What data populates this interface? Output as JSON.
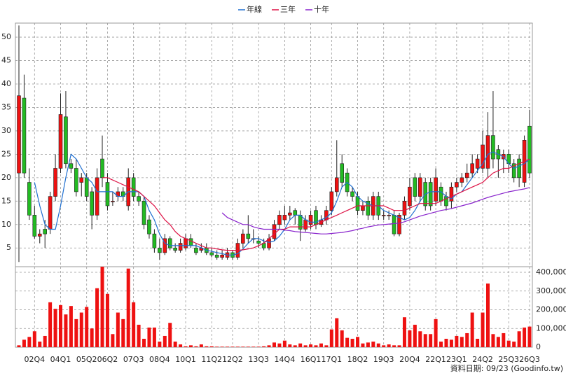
{
  "chart_data": [
    {
      "type": "candlestick",
      "categories": [
        null,
        null,
        null,
        "02Q4",
        null,
        null,
        null,
        null,
        "04Q1",
        null,
        null,
        null,
        null,
        "05Q2",
        null,
        null,
        null,
        "06Q2",
        null,
        null,
        null,
        null,
        "07Q3",
        null,
        null,
        null,
        null,
        "08Q4",
        null,
        null,
        null,
        null,
        "10Q1",
        null,
        null,
        null,
        null,
        "11Q2",
        null,
        null,
        null,
        "12Q2",
        null,
        null,
        null,
        null,
        "13Q3",
        null,
        null,
        null,
        null,
        "14Q4",
        null,
        null,
        null,
        null,
        "16Q1",
        null,
        null,
        null,
        "17Q1",
        null,
        null,
        null,
        null,
        "18Q2",
        null,
        null,
        null,
        null,
        "19Q3",
        null,
        null,
        null,
        null,
        "20Q4",
        null,
        null,
        null,
        null,
        "22Q1",
        null,
        null,
        null,
        "23Q1",
        null,
        null,
        null,
        null,
        "24Q2",
        null,
        null,
        null,
        null,
        "25Q3",
        null,
        null,
        null,
        "26Q3"
      ],
      "open": [
        21,
        37,
        19,
        12,
        7.5,
        9,
        9,
        16,
        22,
        33,
        23,
        22,
        19,
        20,
        17,
        12,
        24,
        19,
        15,
        16,
        17,
        14,
        20,
        16,
        15,
        11,
        8,
        5,
        4,
        7,
        5,
        4.5,
        5,
        7,
        5,
        4.5,
        5,
        4,
        3.5,
        3,
        3,
        4,
        3,
        6,
        8,
        7,
        6.5,
        6,
        5,
        7,
        10,
        11,
        12,
        13,
        12,
        9,
        10,
        13,
        10,
        11,
        13,
        17,
        23,
        21,
        17,
        16,
        13,
        15,
        12,
        16,
        12,
        12,
        12,
        8,
        12,
        14,
        20,
        16,
        19,
        19,
        15,
        18,
        16,
        15,
        18,
        19,
        20,
        21,
        22,
        22,
        22,
        29,
        26,
        24,
        25,
        23,
        24,
        19,
        31
      ],
      "high": [
        52.5,
        42,
        22,
        14,
        9,
        11,
        17,
        25,
        38,
        38.5,
        24,
        24,
        21,
        21,
        18,
        22,
        29,
        21,
        17,
        18,
        18,
        22,
        21,
        17,
        16,
        12,
        9,
        7,
        8,
        7.5,
        6,
        7,
        8,
        8,
        6,
        6,
        6,
        5,
        4.5,
        4.5,
        5,
        4.5,
        7,
        9,
        12,
        9,
        7.5,
        7,
        8,
        11,
        13,
        14,
        14,
        13.5,
        13,
        12,
        13,
        14,
        12,
        14,
        18,
        28,
        25,
        22,
        18,
        17,
        15,
        16,
        17,
        17,
        13,
        13,
        13,
        12.5,
        16,
        20,
        21,
        21,
        20,
        20,
        22,
        19,
        17,
        19,
        20,
        21,
        23,
        25,
        25,
        30,
        34,
        38.5,
        27,
        26,
        26,
        24,
        25,
        29,
        34.5
      ],
      "low": [
        2,
        20,
        11,
        7,
        6,
        5,
        8,
        15,
        21,
        22,
        21,
        16,
        16,
        15,
        9,
        11,
        18,
        13,
        14,
        15,
        15,
        13,
        15,
        14,
        9,
        7,
        4,
        2.5,
        3.5,
        4.5,
        4,
        4,
        4.5,
        5,
        3.5,
        4,
        3.5,
        3,
        2.5,
        2.5,
        2.5,
        2.5,
        2.5,
        5,
        6,
        6,
        5,
        4.5,
        4.5,
        6.5,
        9,
        10,
        11,
        10,
        6.5,
        8.5,
        9,
        9,
        9.5,
        10,
        12,
        16,
        18,
        16,
        15,
        12,
        12,
        11,
        11,
        11,
        11,
        11,
        7.5,
        7.5,
        11,
        13,
        15,
        15,
        13,
        13,
        14,
        14,
        13,
        13.5,
        17,
        18,
        19,
        20,
        21,
        21,
        20,
        22,
        20,
        21,
        21,
        19,
        18,
        18,
        20
      ],
      "close": [
        37.5,
        21,
        12,
        7.5,
        8,
        8,
        16,
        22,
        33.5,
        23,
        22,
        17,
        20,
        16,
        12,
        20,
        20,
        14,
        15,
        17,
        16,
        20,
        16,
        15,
        10,
        8,
        5,
        4,
        7,
        5,
        4.5,
        6,
        7,
        5.5,
        4,
        5,
        4,
        3.5,
        3,
        3.5,
        4,
        3,
        6,
        8,
        7,
        7,
        6,
        5,
        7,
        10,
        12,
        12,
        12.5,
        12,
        9,
        11,
        12,
        10,
        11,
        13,
        17,
        20,
        19,
        17,
        16,
        13,
        14,
        12,
        16,
        12,
        12,
        12,
        8,
        12,
        15,
        18,
        16,
        20,
        14,
        14,
        20,
        15,
        14,
        18,
        19,
        20,
        21,
        23,
        24,
        27,
        29,
        24,
        24,
        25,
        23,
        20,
        20,
        28,
        21
      ],
      "up_color": "#ee1111",
      "down_color": "#22bb22",
      "ylim": [
        1,
        53
      ],
      "yticks": [
        5,
        10,
        15,
        20,
        25,
        30,
        35,
        40,
        45,
        50
      ],
      "grid": true,
      "legend": "top",
      "series": [
        {
          "name": "年線",
          "color": "#1f6fd0",
          "values": [
            null,
            null,
            null,
            19,
            14,
            10,
            9,
            9,
            14,
            20,
            25,
            24,
            22,
            20,
            19,
            17,
            17,
            17,
            17,
            16,
            16,
            17,
            17,
            17,
            16,
            13,
            11,
            8,
            6,
            5.5,
            5.5,
            5.5,
            5.5,
            5.5,
            5.5,
            5,
            4.5,
            4.3,
            4,
            3.8,
            3.5,
            3.5,
            3.8,
            4.8,
            6,
            7,
            7,
            6.5,
            6.2,
            6.5,
            7.5,
            9,
            11,
            12,
            12,
            11,
            10.5,
            10.5,
            11,
            11.5,
            12.5,
            15,
            18,
            19,
            18,
            16,
            15,
            14.5,
            14,
            14,
            13,
            12.5,
            12,
            11.5,
            11,
            11.5,
            13,
            15,
            16.5,
            17,
            17,
            17,
            16,
            15.5,
            16.5,
            17,
            18.5,
            20,
            21.5,
            23,
            25,
            25.5,
            25,
            24.5,
            23,
            22,
            22.5,
            23,
            24
          ]
        },
        {
          "name": "三年",
          "color": "#dd1144",
          "values": [
            null,
            null,
            null,
            null,
            null,
            null,
            null,
            null,
            null,
            null,
            null,
            null,
            null,
            null,
            null,
            null,
            20,
            20,
            19.5,
            19,
            18.5,
            18,
            17.5,
            17,
            16,
            15,
            14,
            12.5,
            11,
            10,
            8.5,
            7.5,
            7,
            6.5,
            6,
            5.5,
            5,
            5,
            4.8,
            4.6,
            4.5,
            4.5,
            4.5,
            4.6,
            4.8,
            5,
            5.5,
            6,
            7,
            8,
            9,
            9,
            9.5,
            9.5,
            9.5,
            9.5,
            9.5,
            10,
            10.5,
            11,
            11.5,
            12,
            12.5,
            13,
            13.5,
            14,
            14,
            14,
            14,
            14,
            14,
            13.5,
            13,
            13,
            13,
            13.5,
            14,
            14.5,
            14.5,
            14.5,
            14.5,
            15,
            15.5,
            16,
            16.5,
            17,
            17.5,
            18,
            18.5,
            19,
            20,
            21,
            21.5,
            22,
            22,
            22.5,
            23,
            23.5,
            24
          ]
        },
        {
          "name": "十年",
          "color": "#8822cc",
          "values": [
            null,
            null,
            null,
            null,
            null,
            null,
            null,
            null,
            null,
            null,
            null,
            null,
            null,
            null,
            null,
            null,
            null,
            null,
            null,
            null,
            null,
            null,
            null,
            null,
            null,
            null,
            null,
            null,
            null,
            null,
            null,
            null,
            null,
            null,
            null,
            null,
            null,
            null,
            null,
            12.5,
            11.5,
            11,
            10.5,
            10,
            10,
            9.5,
            9.2,
            9,
            9,
            9,
            9,
            8.8,
            8.7,
            8.5,
            8.4,
            8.3,
            8.2,
            8.1,
            8,
            8,
            8.1,
            8.2,
            8.3,
            8.5,
            8.7,
            9,
            9.2,
            9.5,
            9.7,
            9.9,
            10,
            10.1,
            10.2,
            10.3,
            10.6,
            11,
            11.4,
            11.8,
            12.1,
            12.4,
            12.7,
            13,
            13.2,
            13.4,
            13.7,
            14,
            14.3,
            14.6,
            15,
            15.4,
            15.8,
            16.1,
            16.4,
            16.7,
            17,
            17.2,
            17.4,
            17.6,
            17.9
          ]
        }
      ]
    },
    {
      "type": "bar",
      "color": "#ee1111",
      "values": [
        10000,
        40000,
        55000,
        85000,
        30000,
        60000,
        240000,
        205000,
        225000,
        175000,
        220000,
        150000,
        185000,
        215000,
        100000,
        315000,
        430000,
        285000,
        70000,
        185000,
        150000,
        420000,
        240000,
        120000,
        45000,
        105000,
        105000,
        30000,
        60000,
        130000,
        30000,
        15000,
        5000,
        10000,
        5000,
        15000,
        5000,
        5000,
        3000,
        3000,
        3000,
        3000,
        3000,
        3000,
        3000,
        3000,
        3000,
        5000,
        10000,
        25000,
        20000,
        35000,
        15000,
        10000,
        20000,
        10000,
        15000,
        10000,
        20000,
        10000,
        95000,
        155000,
        90000,
        50000,
        45000,
        55000,
        20000,
        25000,
        30000,
        20000,
        10000,
        15000,
        10000,
        10000,
        160000,
        90000,
        120000,
        85000,
        70000,
        70000,
        150000,
        30000,
        45000,
        40000,
        60000,
        55000,
        75000,
        185000,
        45000,
        185000,
        340000,
        70000,
        55000,
        75000,
        35000,
        30000,
        85000,
        105000,
        110000
      ],
      "ylim": [
        0,
        430000
      ],
      "yticks": [
        0,
        {
          "value": 100000,
          "label": "100,000"
        },
        {
          "value": 200000,
          "label": "200,000"
        },
        {
          "value": 300000,
          "label": "300,000"
        },
        {
          "value": 400000,
          "label": "400,000"
        }
      ],
      "grid": true
    }
  ],
  "source": "資料日期: 09/23 (Goodinfo.tw)"
}
